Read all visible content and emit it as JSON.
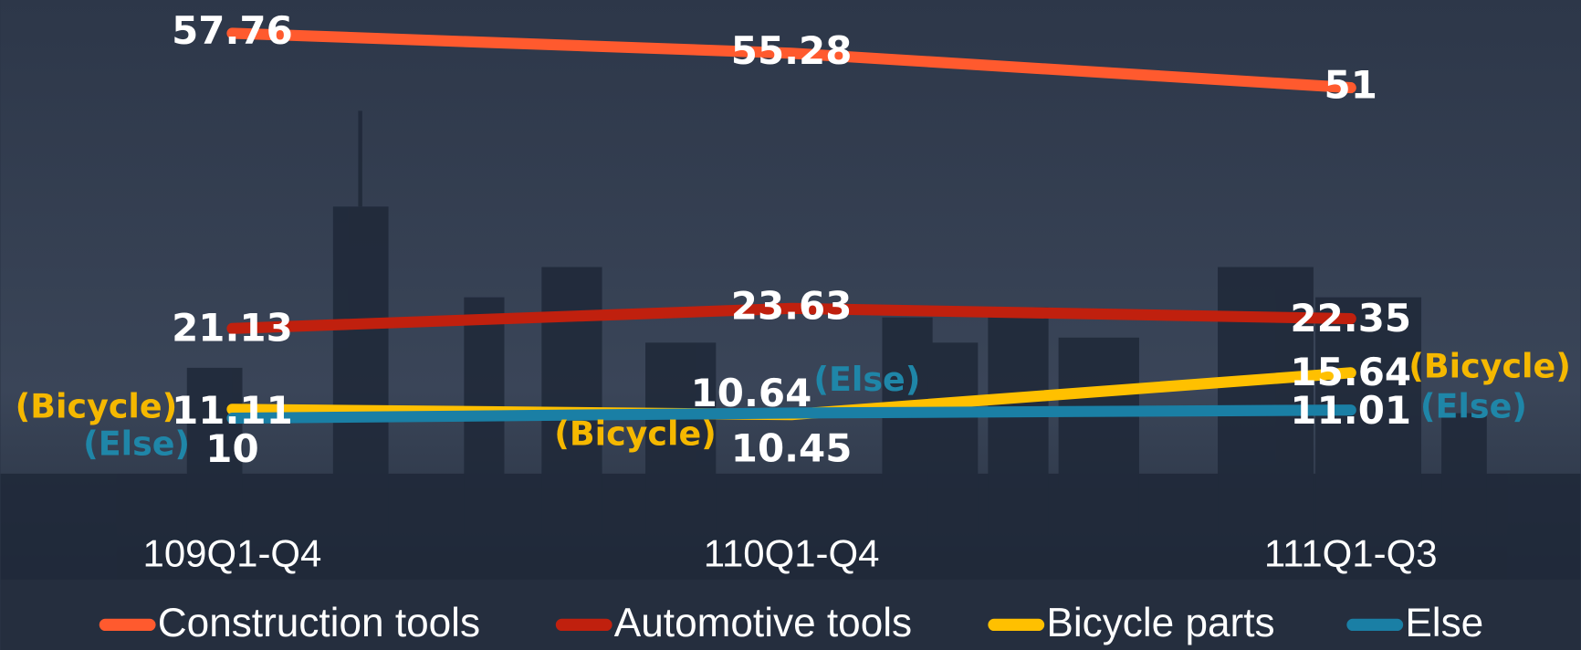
{
  "chart_data": {
    "type": "line",
    "categories": [
      "109Q1-Q4",
      "110Q1-Q4",
      "111Q1-Q3"
    ],
    "series": [
      {
        "name": "Construction tools",
        "color": "#ff5a2e",
        "values": [
          57.76,
          55.28,
          51
        ]
      },
      {
        "name": "Automotive tools",
        "color": "#c0200e",
        "values": [
          21.13,
          23.63,
          22.35
        ]
      },
      {
        "name": "Bicycle parts",
        "color": "#ffc000",
        "values": [
          11.11,
          10.45,
          15.64
        ],
        "label_note": "(Bicycle)",
        "note_color": "#f5b800"
      },
      {
        "name": "Else",
        "color": "#1a7fa5",
        "values": [
          10,
          10.64,
          11.01
        ],
        "label_note": "(Else)",
        "note_color": "#1f86a8"
      }
    ],
    "legend": "bottom"
  }
}
